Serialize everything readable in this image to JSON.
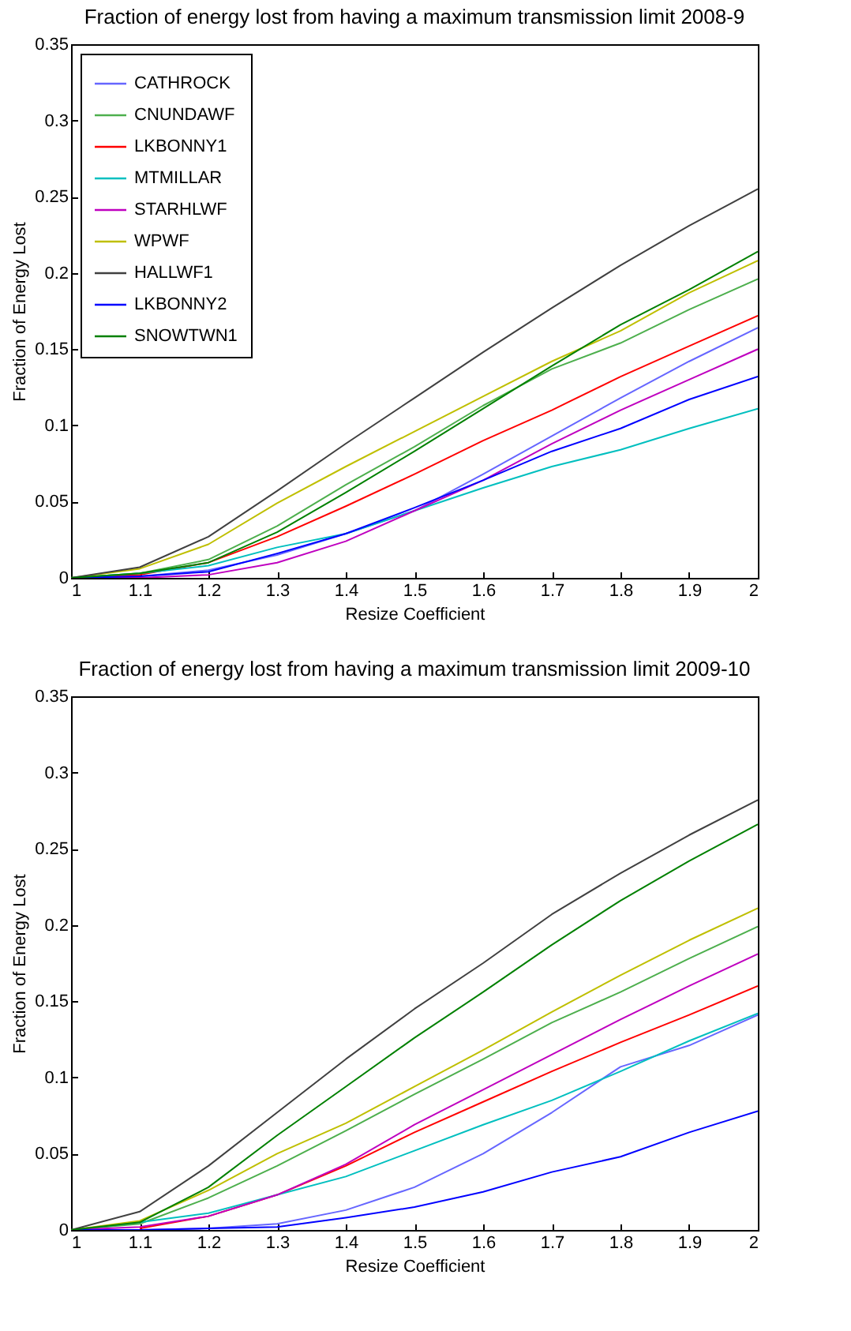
{
  "chart_data": [
    {
      "type": "line",
      "title": "Fraction of energy lost from having a maximum transmission limit 2008-9",
      "xlabel": "Resize Coefficient",
      "ylabel": "Fraction of Energy  Lost",
      "x": [
        1,
        1.1,
        1.2,
        1.3,
        1.4,
        1.5,
        1.6,
        1.7,
        1.8,
        1.9,
        2
      ],
      "series": [
        {
          "name": "CATHROCK",
          "color": "#6666ff",
          "values": [
            0,
            0.001,
            0.005,
            0.015,
            0.029,
            0.044,
            0.068,
            0.093,
            0.118,
            0.142,
            0.164
          ]
        },
        {
          "name": "CNUNDAWF",
          "color": "#4daf4d",
          "values": [
            0,
            0.003,
            0.012,
            0.034,
            0.061,
            0.086,
            0.113,
            0.137,
            0.154,
            0.176,
            0.196
          ]
        },
        {
          "name": "LKBONNY1",
          "color": "#ff0000",
          "values": [
            0,
            0.002,
            0.01,
            0.027,
            0.047,
            0.068,
            0.09,
            0.11,
            0.132,
            0.152,
            0.172
          ]
        },
        {
          "name": "MTMILLAR",
          "color": "#00bfbf",
          "values": [
            0,
            0.003,
            0.008,
            0.02,
            0.029,
            0.044,
            0.059,
            0.073,
            0.084,
            0.098,
            0.111
          ]
        },
        {
          "name": "STARHLWF",
          "color": "#bf00bf",
          "values": [
            0,
            0.0,
            0.002,
            0.01,
            0.024,
            0.044,
            0.064,
            0.088,
            0.11,
            0.13,
            0.15
          ]
        },
        {
          "name": "WPWF",
          "color": "#bfbf00",
          "values": [
            0,
            0.006,
            0.022,
            0.049,
            0.073,
            0.096,
            0.119,
            0.142,
            0.162,
            0.187,
            0.208
          ]
        },
        {
          "name": "HALLWF1",
          "color": "#404040",
          "values": [
            0,
            0.007,
            0.027,
            0.057,
            0.088,
            0.118,
            0.148,
            0.177,
            0.205,
            0.231,
            0.255
          ]
        },
        {
          "name": "LKBONNY2",
          "color": "#0000ff",
          "values": [
            0,
            0.001,
            0.004,
            0.016,
            0.029,
            0.046,
            0.064,
            0.083,
            0.098,
            0.117,
            0.132
          ]
        },
        {
          "name": "SNOWTWN1",
          "color": "#008000",
          "values": [
            0,
            0.003,
            0.01,
            0.03,
            0.056,
            0.083,
            0.111,
            0.139,
            0.166,
            0.189,
            0.214
          ]
        }
      ],
      "xlim": [
        1,
        2
      ],
      "xticks": [
        1,
        1.1,
        1.2,
        1.3,
        1.4,
        1.5,
        1.6,
        1.7,
        1.8,
        1.9,
        2
      ],
      "ylim": [
        0,
        0.35
      ],
      "yticks": [
        0,
        0.05,
        0.1,
        0.15,
        0.2,
        0.25,
        0.3,
        0.35
      ],
      "grid": false,
      "legend": "top left"
    },
    {
      "type": "line",
      "title": "Fraction of energy lost from having a maximum transmission limit 2009-10",
      "xlabel": "Resize Coefficient",
      "ylabel": "Fraction of Energy  Lost",
      "x": [
        1,
        1.1,
        1.2,
        1.3,
        1.4,
        1.5,
        1.6,
        1.7,
        1.8,
        1.9,
        2
      ],
      "series": [
        {
          "name": "CATHROCK",
          "color": "#6666ff",
          "values": [
            0,
            0.0,
            0.001,
            0.004,
            0.013,
            0.028,
            0.05,
            0.077,
            0.107,
            0.121,
            0.141
          ]
        },
        {
          "name": "CNUNDAWF",
          "color": "#4daf4d",
          "values": [
            0,
            0.004,
            0.021,
            0.042,
            0.065,
            0.089,
            0.112,
            0.136,
            0.156,
            0.178,
            0.199
          ]
        },
        {
          "name": "LKBONNY1",
          "color": "#ff0000",
          "values": [
            null,
            0.001,
            0.009,
            0.023,
            0.042,
            0.064,
            0.084,
            0.104,
            0.123,
            0.141,
            0.16
          ]
        },
        {
          "name": "MTMILLAR",
          "color": "#00bfbf",
          "values": [
            0,
            0.005,
            0.011,
            0.023,
            0.035,
            0.052,
            0.069,
            0.085,
            0.104,
            0.124,
            0.142
          ]
        },
        {
          "name": "STARHLWF",
          "color": "#bf00bf",
          "values": [
            0,
            0.002,
            0.009,
            0.023,
            0.043,
            0.069,
            0.092,
            0.115,
            0.138,
            0.16,
            0.181
          ]
        },
        {
          "name": "WPWF",
          "color": "#bfbf00",
          "values": [
            0,
            0.006,
            0.026,
            0.05,
            0.07,
            0.094,
            0.118,
            0.143,
            0.167,
            0.19,
            0.211
          ]
        },
        {
          "name": "HALLWF1",
          "color": "#404040",
          "values": [
            0,
            0.012,
            0.042,
            0.077,
            0.112,
            0.145,
            0.175,
            0.207,
            0.234,
            0.259,
            0.282
          ]
        },
        {
          "name": "LKBONNY2",
          "color": "#0000ff",
          "values": [
            0,
            0.0,
            0.001,
            0.002,
            0.008,
            0.015,
            0.025,
            0.038,
            0.048,
            0.064,
            0.078
          ]
        },
        {
          "name": "SNOWTWN1",
          "color": "#008000",
          "values": [
            0,
            0.005,
            0.028,
            0.062,
            0.094,
            0.126,
            0.156,
            0.187,
            0.216,
            0.242,
            0.266
          ]
        }
      ],
      "xlim": [
        1,
        2
      ],
      "xticks": [
        1,
        1.1,
        1.2,
        1.3,
        1.4,
        1.5,
        1.6,
        1.7,
        1.8,
        1.9,
        2
      ],
      "ylim": [
        0,
        0.35
      ],
      "yticks": [
        0,
        0.05,
        0.1,
        0.15,
        0.2,
        0.25,
        0.3,
        0.35
      ],
      "grid": false,
      "legend": "top left"
    }
  ]
}
